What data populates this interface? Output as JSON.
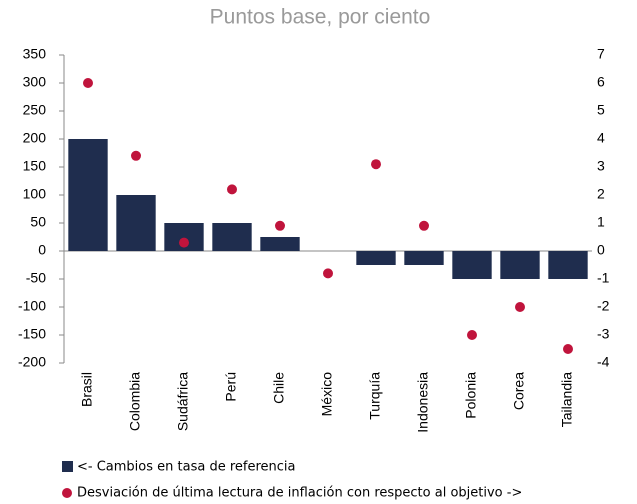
{
  "chart_data": {
    "type": "bar",
    "subtitle": "Puntos base, por ciento",
    "categories": [
      "Brasil",
      "Colombia",
      "Sudáfrica",
      "Perú",
      "Chile",
      "México",
      "Turquía",
      "Indonesia",
      "Polonia",
      "Corea",
      "Tailandia"
    ],
    "series": [
      {
        "name": "<- Cambios en tasa de referencia",
        "color": "#1f2d4e",
        "type": "bar",
        "values": [
          200,
          100,
          50,
          50,
          25,
          0,
          -25,
          -25,
          -50,
          -50,
          -50
        ]
      },
      {
        "name": "Desviación de última lectura de inflación con respecto al objetivo ->",
        "color": "#c0143c",
        "type": "scatter",
        "axis": "y2",
        "values": [
          6,
          3.4,
          0.3,
          2.2,
          0.9,
          -0.8,
          3.1,
          0.9,
          -3,
          -2,
          -3.5
        ]
      }
    ],
    "ylim": [
      -200,
      350
    ],
    "yticks": [
      -200,
      -150,
      -100,
      -50,
      0,
      50,
      100,
      150,
      200,
      250,
      300,
      350
    ],
    "y2lim": [
      -4,
      7
    ],
    "y2ticks": [
      -4,
      -3,
      -2,
      -1,
      0,
      1,
      2,
      3,
      4,
      5,
      6,
      7
    ]
  }
}
